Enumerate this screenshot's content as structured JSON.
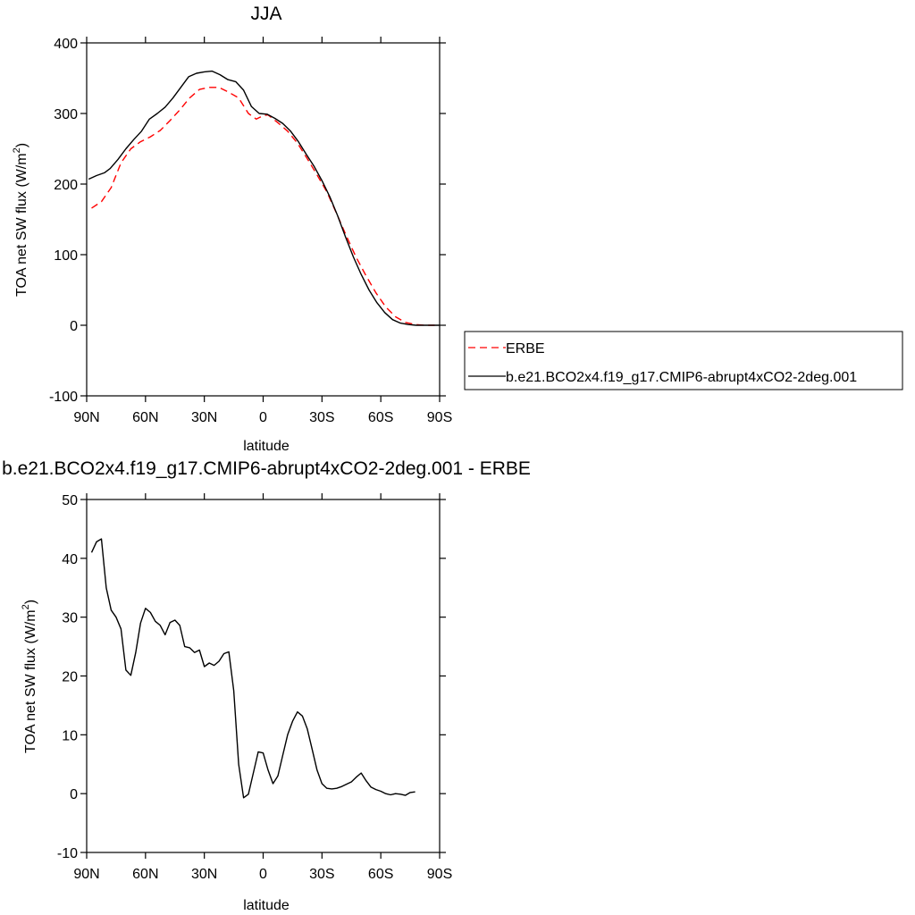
{
  "chart_data": [
    {
      "type": "line",
      "title": "JJA",
      "xlabel": "latitude",
      "ylabel_main": "TOA net SW flux (W/m",
      "ylabel_sup": "2",
      "ylabel_end": ")",
      "x_tick_labels": [
        "90N",
        "60N",
        "30N",
        "0",
        "30S",
        "60S",
        "90S"
      ],
      "x_tick_values": [
        90,
        60,
        30,
        0,
        -30,
        -60,
        -90
      ],
      "xlim": [
        90,
        -90
      ],
      "ylim": [
        -100,
        400
      ],
      "y_ticks": [
        -100,
        0,
        100,
        200,
        300,
        400
      ],
      "legend_position": "outside-right",
      "series": [
        {
          "name": "ERBE",
          "color": "#ff0000",
          "dash": true,
          "points": [
            [
              87.5,
              166
            ],
            [
              82.5,
              175
            ],
            [
              77.5,
              195
            ],
            [
              72.5,
              230
            ],
            [
              67.5,
              250
            ],
            [
              62.5,
              260
            ],
            [
              57.5,
              267
            ],
            [
              52.5,
              276
            ],
            [
              47.5,
              290
            ],
            [
              42.5,
              305
            ],
            [
              37.5,
              322
            ],
            [
              32.5,
              334
            ],
            [
              27.5,
              337
            ],
            [
              22.5,
              337
            ],
            [
              17.5,
              330
            ],
            [
              12.5,
              322
            ],
            [
              7.5,
              300
            ],
            [
              3.5,
              292
            ],
            [
              0,
              297
            ],
            [
              -2.5,
              298
            ],
            [
              -7.5,
              287
            ],
            [
              -12.5,
              275
            ],
            [
              -17.5,
              258
            ],
            [
              -22.5,
              236
            ],
            [
              -27.5,
              213
            ],
            [
              -32.5,
              189
            ],
            [
              -37.5,
              158
            ],
            [
              -42.5,
              126
            ],
            [
              -47.5,
              96
            ],
            [
              -52.5,
              70
            ],
            [
              -57.5,
              46
            ],
            [
              -62.5,
              26
            ],
            [
              -67.5,
              12
            ],
            [
              -72.5,
              4
            ],
            [
              -77.5,
              1
            ],
            [
              -82.5,
              0
            ],
            [
              -87.5,
              0
            ]
          ]
        },
        {
          "name": "b.e21.BCO2x4.f19_g17.CMIP6-abrupt4xCO2-2deg.001",
          "color": "#000000",
          "dash": false,
          "points": [
            [
              89,
              207
            ],
            [
              85,
              212
            ],
            [
              81,
              216
            ],
            [
              78,
              222
            ],
            [
              74,
              235
            ],
            [
              70,
              250
            ],
            [
              66,
              263
            ],
            [
              62,
              275
            ],
            [
              58,
              292
            ],
            [
              54,
              300
            ],
            [
              50,
              309
            ],
            [
              46,
              322
            ],
            [
              42,
              337
            ],
            [
              38,
              352
            ],
            [
              34,
              357
            ],
            [
              30,
              359
            ],
            [
              26,
              360
            ],
            [
              22,
              355
            ],
            [
              18,
              348
            ],
            [
              14,
              345
            ],
            [
              10,
              333
            ],
            [
              6,
              310
            ],
            [
              2,
              300
            ],
            [
              -2,
              299
            ],
            [
              -6,
              293
            ],
            [
              -10,
              286
            ],
            [
              -14,
              275
            ],
            [
              -18,
              260
            ],
            [
              -22,
              242
            ],
            [
              -26,
              225
            ],
            [
              -30,
              205
            ],
            [
              -34,
              182
            ],
            [
              -38,
              155
            ],
            [
              -42,
              125
            ],
            [
              -46,
              97
            ],
            [
              -50,
              72
            ],
            [
              -54,
              50
            ],
            [
              -58,
              32
            ],
            [
              -62,
              18
            ],
            [
              -66,
              8
            ],
            [
              -70,
              3
            ],
            [
              -74,
              1
            ],
            [
              -78,
              0
            ],
            [
              -82,
              0
            ],
            [
              -86,
              0
            ],
            [
              -90,
              0
            ]
          ]
        }
      ]
    },
    {
      "type": "line",
      "title": "b.e21.BCO2x4.f19_g17.CMIP6-abrupt4xCO2-2deg.001 - ERBE",
      "xlabel": "latitude",
      "ylabel_main": "TOA net SW flux (W/m",
      "ylabel_sup": "2",
      "ylabel_end": ")",
      "x_tick_labels": [
        "90N",
        "60N",
        "30N",
        "0",
        "30S",
        "60S",
        "90S"
      ],
      "x_tick_values": [
        90,
        60,
        30,
        0,
        -30,
        -60,
        -90
      ],
      "xlim": [
        90,
        -90
      ],
      "ylim": [
        -10,
        50
      ],
      "y_ticks": [
        -10,
        0,
        10,
        20,
        30,
        40,
        50
      ],
      "series": [
        {
          "color": "#000000",
          "dash": false,
          "points": [
            [
              87.5,
              41
            ],
            [
              85,
              42.8
            ],
            [
              82.5,
              43.3
            ],
            [
              80,
              35
            ],
            [
              77.5,
              31.2
            ],
            [
              75,
              30
            ],
            [
              72.5,
              28
            ],
            [
              70,
              21
            ],
            [
              67.5,
              20.1
            ],
            [
              65,
              24
            ],
            [
              62.5,
              29
            ],
            [
              60,
              31.5
            ],
            [
              57.5,
              30.8
            ],
            [
              55,
              29.3
            ],
            [
              52.5,
              28.6
            ],
            [
              50,
              27
            ],
            [
              47.5,
              29.1
            ],
            [
              45,
              29.5
            ],
            [
              42.5,
              28.6
            ],
            [
              40,
              25
            ],
            [
              37.5,
              24.8
            ],
            [
              35,
              24
            ],
            [
              32.5,
              24.4
            ],
            [
              30,
              21.6
            ],
            [
              27.5,
              22.2
            ],
            [
              25,
              21.8
            ],
            [
              22.5,
              22.5
            ],
            [
              20,
              23.8
            ],
            [
              17.5,
              24.1
            ],
            [
              15,
              17.5
            ],
            [
              12.5,
              5
            ],
            [
              10,
              -0.7
            ],
            [
              7.5,
              -0.1
            ],
            [
              5,
              3.5
            ],
            [
              2.5,
              7.1
            ],
            [
              0,
              6.9
            ],
            [
              -2.5,
              4
            ],
            [
              -5,
              1.7
            ],
            [
              -7.5,
              3
            ],
            [
              -10,
              6.5
            ],
            [
              -12.5,
              10
            ],
            [
              -15,
              12.3
            ],
            [
              -17.5,
              13.9
            ],
            [
              -20,
              13.2
            ],
            [
              -22.5,
              11
            ],
            [
              -25,
              7.5
            ],
            [
              -27.5,
              4
            ],
            [
              -30,
              1.7
            ],
            [
              -32.5,
              0.9
            ],
            [
              -35,
              0.8
            ],
            [
              -37.5,
              0.9
            ],
            [
              -40,
              1.2
            ],
            [
              -42.5,
              1.6
            ],
            [
              -45,
              2
            ],
            [
              -47.5,
              2.8
            ],
            [
              -50,
              3.5
            ],
            [
              -52.5,
              2.2
            ],
            [
              -55,
              1.1
            ],
            [
              -57.5,
              0.7
            ],
            [
              -60,
              0.4
            ],
            [
              -62.5,
              0
            ],
            [
              -65,
              -0.2
            ],
            [
              -67.5,
              0
            ],
            [
              -70,
              -0.1
            ],
            [
              -72.5,
              -0.3
            ],
            [
              -75,
              0.2
            ],
            [
              -77.5,
              0.3
            ]
          ]
        }
      ]
    }
  ]
}
